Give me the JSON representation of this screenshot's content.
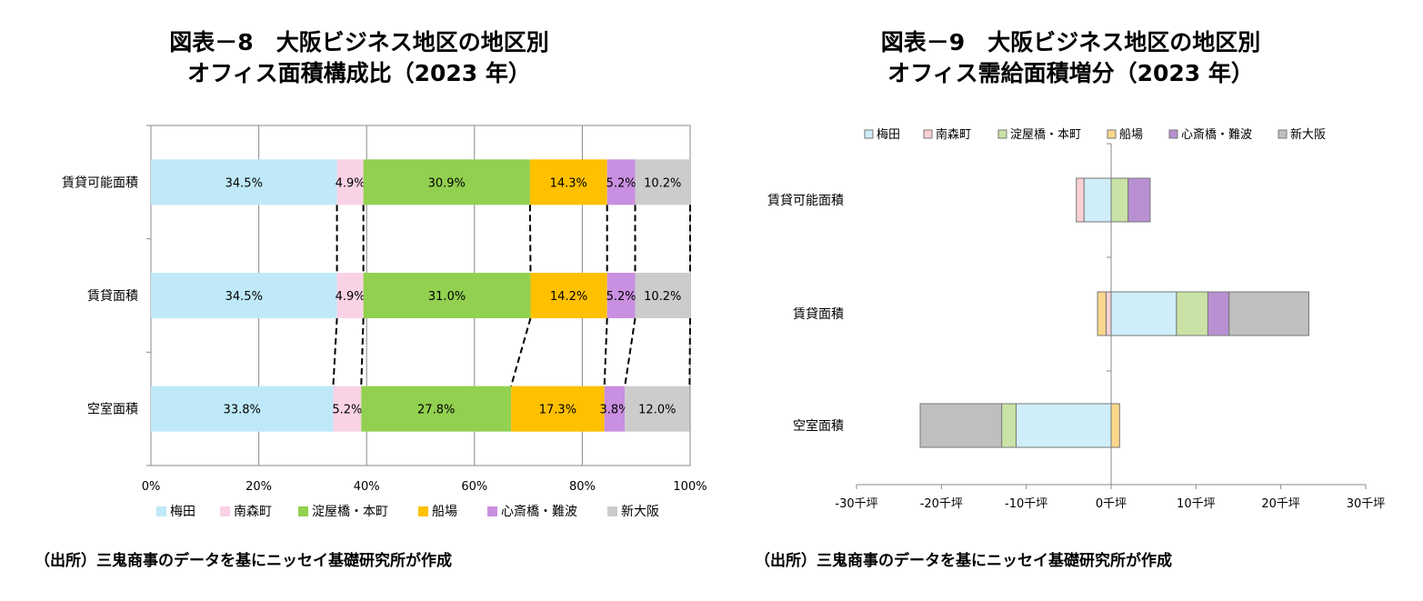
{
  "charts": [
    {
      "title_line1": "図表－8　大阪ビジネス地区の地区別",
      "title_line2": "オフィス面積構成比（2023 年）",
      "source": "（出所）三鬼商事のデータを基にニッセイ基礎研究所が作成"
    },
    {
      "title_line1": "図表－9　大阪ビジネス地区の地区別",
      "title_line2": "オフィス需給面積増分（2023 年）",
      "source": "（出所）三鬼商事のデータを基にニッセイ基礎研究所が作成"
    }
  ],
  "colors": {
    "梅田": "#bfe9f8",
    "南森町": "#f9d2e6",
    "淀屋橋・本町": "#92d050",
    "船場": "#ffc000",
    "心斎橋・難波": "#c98fe0",
    "新大阪": "#cccccc"
  },
  "colors_right": {
    "梅田": "#cfeef9",
    "南森町": "#fad2d5",
    "淀屋橋・本町": "#c9e3a6",
    "船場": "#fbd78c",
    "心斎橋・難波": "#b890d1",
    "新大阪": "#bfbfbf"
  },
  "chart_data": [
    {
      "type": "bar",
      "orientation": "horizontal",
      "stacked": "percent",
      "title": "図表－8　大阪ビジネス地区の地区別 オフィス面積構成比（2023 年）",
      "categories": [
        "賃貸可能面積",
        "賃貸面積",
        "空室面積"
      ],
      "series": [
        {
          "name": "梅田",
          "values": [
            34.5,
            34.5,
            33.8
          ],
          "labels": [
            "34.5%",
            "34.5%",
            "33.8%"
          ]
        },
        {
          "name": "南森町",
          "values": [
            4.9,
            4.9,
            5.2
          ],
          "labels": [
            "4.9%",
            "4.9%",
            "5.2%"
          ]
        },
        {
          "name": "淀屋橋・本町",
          "values": [
            30.9,
            31.0,
            27.8
          ],
          "labels": [
            "30.9%",
            "31.0%",
            "27.8%"
          ]
        },
        {
          "name": "船場",
          "values": [
            14.3,
            14.2,
            17.3
          ],
          "labels": [
            "14.3%",
            "14.2%",
            "17.3%"
          ]
        },
        {
          "name": "心斎橋・難波",
          "values": [
            5.2,
            5.2,
            3.8
          ],
          "labels": [
            "5.2%",
            "5.2%",
            "3.8%"
          ]
        },
        {
          "name": "新大阪",
          "values": [
            10.2,
            10.2,
            12.0
          ],
          "labels": [
            "10.2%",
            "10.2%",
            "12.0%"
          ]
        }
      ],
      "xlim": [
        0,
        100
      ],
      "xticks": [
        "0%",
        "20%",
        "40%",
        "60%",
        "80%",
        "100%"
      ],
      "grid": true,
      "legend_position": "bottom",
      "connector_lines": "dashed"
    },
    {
      "type": "bar",
      "orientation": "horizontal",
      "stacked": "diverging",
      "title": "図表－9　大阪ビジネス地区の地区別 オフィス需給面積増分（2023 年）",
      "categories": [
        "賃貸可能面積",
        "賃貸面積",
        "空室面積"
      ],
      "series": [
        {
          "name": "梅田",
          "values": [
            -3.2,
            7.7,
            -11.2
          ]
        },
        {
          "name": "南森町",
          "values": [
            -0.9,
            -0.6,
            0.0
          ]
        },
        {
          "name": "淀屋橋・本町",
          "values": [
            2.0,
            3.7,
            -1.7
          ]
        },
        {
          "name": "船場",
          "values": [
            0.0,
            -1.0,
            1.0
          ]
        },
        {
          "name": "心斎橋・難波",
          "values": [
            2.6,
            2.5,
            0.0
          ]
        },
        {
          "name": "新大阪",
          "values": [
            0.0,
            9.4,
            -9.6
          ]
        }
      ],
      "xlim": [
        -30,
        30
      ],
      "xticks": [
        "-30千坪",
        "-20千坪",
        "-10千坪",
        "0千坪",
        "10千坪",
        "20千坪",
        "30千坪"
      ],
      "xunit": "千坪",
      "grid": false,
      "legend_position": "top"
    }
  ]
}
